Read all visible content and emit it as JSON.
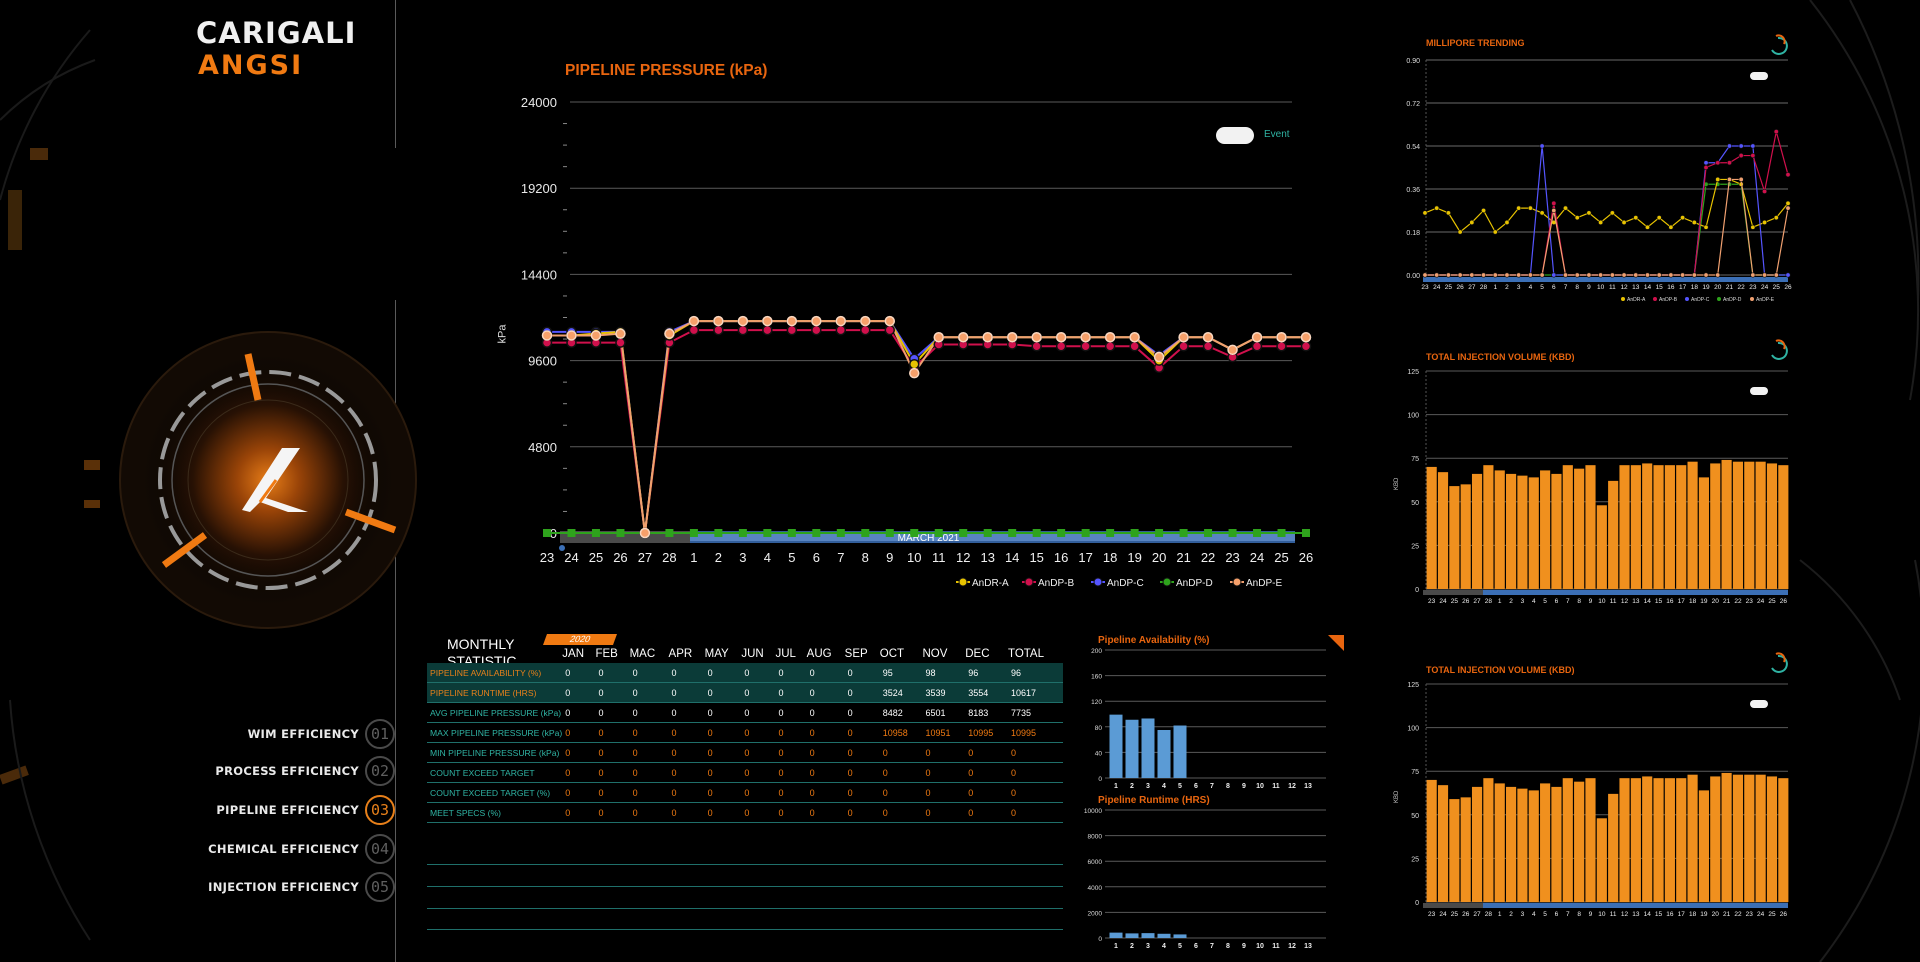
{
  "brand": {
    "line1": "CARIGALI",
    "line2": "ANGSI"
  },
  "nav": {
    "items": [
      {
        "label": "WIM EFFICIENCY",
        "num": "01",
        "active": false
      },
      {
        "label": "PROCESS EFFICIENCY",
        "num": "02",
        "active": false
      },
      {
        "label": "PIPELINE EFFICIENCY",
        "num": "03",
        "active": true
      },
      {
        "label": "CHEMICAL EFFICIENCY",
        "num": "04",
        "active": false
      },
      {
        "label": "INJECTION EFFICIENCY",
        "num": "05",
        "active": false
      }
    ]
  },
  "main_chart": {
    "title": "PIPELINE PRESSURE (kPa)",
    "toggle_label": "Event",
    "ylabel": "kPa",
    "range_label": "MARCH 2021"
  },
  "statistic": {
    "title_line1": "MONTHLY",
    "title_line2": "STATISTIC",
    "year": "2020",
    "columns": [
      "JAN",
      "FEB",
      "MAC",
      "APR",
      "MAY",
      "JUN",
      "JUL",
      "AUG",
      "SEP",
      "OCT",
      "NOV",
      "DEC",
      "TOTAL"
    ],
    "rows": [
      {
        "label": "PIPELINE AVAILABILITY (%)",
        "values": [
          "0",
          "0",
          "0",
          "0",
          "0",
          "0",
          "0",
          "0",
          "0",
          "95",
          "98",
          "96",
          "96"
        ]
      },
      {
        "label": "PIPELINE RUNTIME (HRS)",
        "values": [
          "0",
          "0",
          "0",
          "0",
          "0",
          "0",
          "0",
          "0",
          "0",
          "3524",
          "3539",
          "3554",
          "10617"
        ]
      },
      {
        "label": "AVG PIPELINE PRESSURE (kPa)",
        "values": [
          "0",
          "0",
          "0",
          "0",
          "0",
          "0",
          "0",
          "0",
          "0",
          "8482",
          "6501",
          "8183",
          "7735"
        ]
      },
      {
        "label": "MAX PIPELINE PRESSURE (kPa)",
        "values": [
          "0",
          "0",
          "0",
          "0",
          "0",
          "0",
          "0",
          "0",
          "0",
          "10958",
          "10951",
          "10995",
          "10995"
        ]
      },
      {
        "label": "MIN PIPELINE PRESSURE (kPa)",
        "values": [
          "0",
          "0",
          "0",
          "0",
          "0",
          "0",
          "0",
          "0",
          "0",
          "0",
          "0",
          "0",
          "0"
        ]
      },
      {
        "label": "COUNT EXCEED TARGET",
        "values": [
          "0",
          "0",
          "0",
          "0",
          "0",
          "0",
          "0",
          "0",
          "0",
          "0",
          "0",
          "0",
          "0"
        ]
      },
      {
        "label": "COUNT EXCEED TARGET (%)",
        "values": [
          "0",
          "0",
          "0",
          "0",
          "0",
          "0",
          "0",
          "0",
          "0",
          "0",
          "0",
          "0",
          "0"
        ]
      },
      {
        "label": "MEET SPECS (%)",
        "values": [
          "0",
          "0",
          "0",
          "0",
          "0",
          "0",
          "0",
          "0",
          "0",
          "0",
          "0",
          "0",
          "0"
        ]
      }
    ]
  },
  "colors": {
    "orange": "#e8650f",
    "teal": "#2fb3a3",
    "bar_orange": "#f0901e",
    "bar_blue": "#5b9bd5"
  },
  "chart_data": [
    {
      "type": "line",
      "title": "PIPELINE PRESSURE (kPa)",
      "ylabel": "kPa",
      "ylim": [
        0,
        24000
      ],
      "yticks": [
        0,
        4800,
        9600,
        14400,
        19200,
        24000
      ],
      "x": [
        "23",
        "24",
        "25",
        "26",
        "27",
        "28",
        "1",
        "2",
        "3",
        "4",
        "5",
        "6",
        "7",
        "8",
        "9",
        "10",
        "11",
        "12",
        "13",
        "14",
        "15",
        "16",
        "17",
        "18",
        "19",
        "20",
        "21",
        "22",
        "23",
        "24",
        "25",
        "26"
      ],
      "series": [
        {
          "name": "AnDR-A",
          "color": "#e8c300",
          "values": [
            11000,
            11000,
            11100,
            11200,
            0,
            11000,
            11800,
            11800,
            11800,
            11800,
            11800,
            11800,
            11800,
            11800,
            11800,
            9400,
            10900,
            10900,
            10900,
            10900,
            10900,
            10900,
            10900,
            10900,
            10900,
            9600,
            10900,
            10900,
            10200,
            10900,
            10900,
            10900
          ]
        },
        {
          "name": "AnDP-B",
          "color": "#d0104c",
          "values": [
            10600,
            10600,
            10600,
            10600,
            0,
            10600,
            11300,
            11300,
            11300,
            11300,
            11300,
            11300,
            11300,
            11300,
            11300,
            9200,
            10500,
            10500,
            10500,
            10500,
            10400,
            10400,
            10400,
            10400,
            10400,
            9200,
            10400,
            10400,
            9800,
            10400,
            10400,
            10400
          ]
        },
        {
          "name": "AnDP-C",
          "color": "#5555ff",
          "values": [
            11200,
            11200,
            11200,
            11200,
            0,
            11200,
            11800,
            11800,
            11800,
            11800,
            11800,
            11800,
            11800,
            11800,
            11800,
            9700,
            10900,
            10900,
            10900,
            10900,
            10900,
            10900,
            10900,
            10900,
            10900,
            9900,
            10900,
            10900,
            10200,
            10900,
            10900,
            10900
          ]
        },
        {
          "name": "AnDP-D",
          "color": "#2ea31c",
          "values": [
            0,
            0,
            0,
            0,
            0,
            0,
            0,
            0,
            0,
            0,
            0,
            0,
            0,
            0,
            0,
            0,
            0,
            0,
            0,
            0,
            0,
            0,
            0,
            0,
            0,
            0,
            0,
            0,
            0,
            0,
            0,
            0
          ]
        },
        {
          "name": "AnDP-E",
          "color": "#f0a070",
          "values": [
            11000,
            11000,
            11000,
            11100,
            0,
            11100,
            11800,
            11800,
            11800,
            11800,
            11800,
            11800,
            11800,
            11800,
            11800,
            8900,
            10900,
            10900,
            10900,
            10900,
            10900,
            10900,
            10900,
            10900,
            10900,
            9800,
            10900,
            10900,
            10200,
            10900,
            10900,
            10900
          ]
        }
      ],
      "legend": "bottom-right"
    },
    {
      "type": "line",
      "title": "MILLIPORE TRENDING",
      "ylim": [
        0,
        0.9
      ],
      "yticks": [
        "0.00",
        "0.18",
        "0.36",
        "0.54",
        "0.72",
        "0.90"
      ],
      "x": [
        "23",
        "24",
        "25",
        "26",
        "27",
        "28",
        "1",
        "2",
        "3",
        "4",
        "5",
        "6",
        "7",
        "8",
        "9",
        "10",
        "11",
        "12",
        "13",
        "14",
        "15",
        "16",
        "17",
        "18",
        "19",
        "20",
        "21",
        "22",
        "23",
        "24",
        "25",
        "26"
      ],
      "series": [
        {
          "name": "AnDR-A",
          "color": "#e8c300",
          "values": [
            0.26,
            0.28,
            0.26,
            0.18,
            0.22,
            0.27,
            0.18,
            0.22,
            0.28,
            0.28,
            0.26,
            0.22,
            0.28,
            0.24,
            0.26,
            0.22,
            0.26,
            0.22,
            0.24,
            0.2,
            0.24,
            0.2,
            0.24,
            0.22,
            0.2,
            0.4,
            0.4,
            0.38,
            0.2,
            0.22,
            0.24,
            0.3
          ]
        },
        {
          "name": "AnDP-B",
          "color": "#d0104c",
          "values": [
            0,
            0,
            0,
            0,
            0,
            0,
            0,
            0,
            0,
            0,
            0,
            0.3,
            0,
            0,
            0,
            0,
            0,
            0,
            0,
            0,
            0,
            0,
            0,
            0,
            0.45,
            0.47,
            0.47,
            0.5,
            0.5,
            0.35,
            0.6,
            0.42
          ]
        },
        {
          "name": "AnDP-C",
          "color": "#5555ff",
          "values": [
            0,
            0,
            0,
            0,
            0,
            0,
            0,
            0,
            0,
            0,
            0.54,
            0,
            0,
            0,
            0,
            0,
            0,
            0,
            0,
            0,
            0,
            0,
            0,
            0,
            0.47,
            0.47,
            0.54,
            0.54,
            0.54,
            0,
            0,
            0
          ]
        },
        {
          "name": "AnDP-D",
          "color": "#2ea31c",
          "values": [
            0,
            0,
            0,
            0,
            0,
            0,
            0,
            0,
            0,
            0,
            0,
            0,
            0,
            0,
            0,
            0,
            0,
            0,
            0,
            0,
            0,
            0,
            0,
            0,
            0.38,
            0.38,
            0.38,
            0.38,
            0,
            0,
            0,
            0
          ]
        },
        {
          "name": "AnDP-E",
          "color": "#f0a070",
          "values": [
            0,
            0,
            0,
            0,
            0,
            0,
            0,
            0,
            0,
            0,
            0,
            0.27,
            0,
            0,
            0,
            0,
            0,
            0,
            0,
            0,
            0,
            0,
            0,
            0,
            0,
            0,
            0.4,
            0.4,
            0,
            0,
            0,
            0.28
          ]
        }
      ]
    },
    {
      "type": "bar",
      "title": "TOTAL INJECTION VOLUME (KBD)",
      "ylabel": "KBD",
      "ylim": [
        0,
        125
      ],
      "yticks": [
        0,
        25,
        50,
        75,
        100,
        125
      ],
      "x": [
        "23",
        "24",
        "25",
        "26",
        "27",
        "28",
        "1",
        "2",
        "3",
        "4",
        "5",
        "6",
        "7",
        "8",
        "9",
        "10",
        "11",
        "12",
        "13",
        "14",
        "15",
        "16",
        "17",
        "18",
        "19",
        "20",
        "21",
        "22",
        "23",
        "24",
        "25",
        "26"
      ],
      "values": [
        70,
        67,
        59,
        60,
        66,
        71,
        68,
        66,
        65,
        64,
        68,
        66,
        71,
        69,
        71,
        48,
        62,
        71,
        71,
        72,
        71,
        71,
        71,
        73,
        64,
        72,
        74,
        73,
        73,
        73,
        72,
        71
      ]
    },
    {
      "type": "bar",
      "title": "TOTAL INJECTION VOLUME (KBD)",
      "ylabel": "KBD",
      "ylim": [
        0,
        125
      ],
      "yticks": [
        0,
        25,
        50,
        75,
        100,
        125
      ],
      "x": [
        "23",
        "24",
        "25",
        "26",
        "27",
        "28",
        "1",
        "2",
        "3",
        "4",
        "5",
        "6",
        "7",
        "8",
        "9",
        "10",
        "11",
        "12",
        "13",
        "14",
        "15",
        "16",
        "17",
        "18",
        "19",
        "20",
        "21",
        "22",
        "23",
        "24",
        "25",
        "26"
      ],
      "values": [
        70,
        67,
        59,
        60,
        66,
        71,
        68,
        66,
        65,
        64,
        68,
        66,
        71,
        69,
        71,
        48,
        62,
        71,
        71,
        72,
        71,
        71,
        71,
        73,
        64,
        72,
        74,
        73,
        73,
        73,
        72,
        71
      ]
    },
    {
      "type": "bar",
      "title": "Pipeline Availability (%)",
      "ylim": [
        0,
        200
      ],
      "yticks": [
        0,
        40,
        80,
        120,
        160,
        200
      ],
      "x": [
        "1",
        "2",
        "3",
        "4",
        "5",
        "6",
        "7",
        "8",
        "9",
        "10",
        "11",
        "12",
        "13"
      ],
      "values": [
        99,
        91,
        93,
        75,
        82,
        0,
        0,
        0,
        0,
        0,
        0,
        0,
        0
      ]
    },
    {
      "type": "bar",
      "title": "Pipeline Runtime (HRS)",
      "ylim": [
        0,
        10000
      ],
      "yticks": [
        0,
        2000,
        4000,
        6000,
        8000,
        10000
      ],
      "x": [
        "1",
        "2",
        "3",
        "4",
        "5",
        "6",
        "7",
        "8",
        "9",
        "10",
        "11",
        "12",
        "13"
      ],
      "values": [
        420,
        360,
        380,
        330,
        280,
        0,
        0,
        0,
        0,
        0,
        0,
        0,
        0
      ]
    }
  ]
}
